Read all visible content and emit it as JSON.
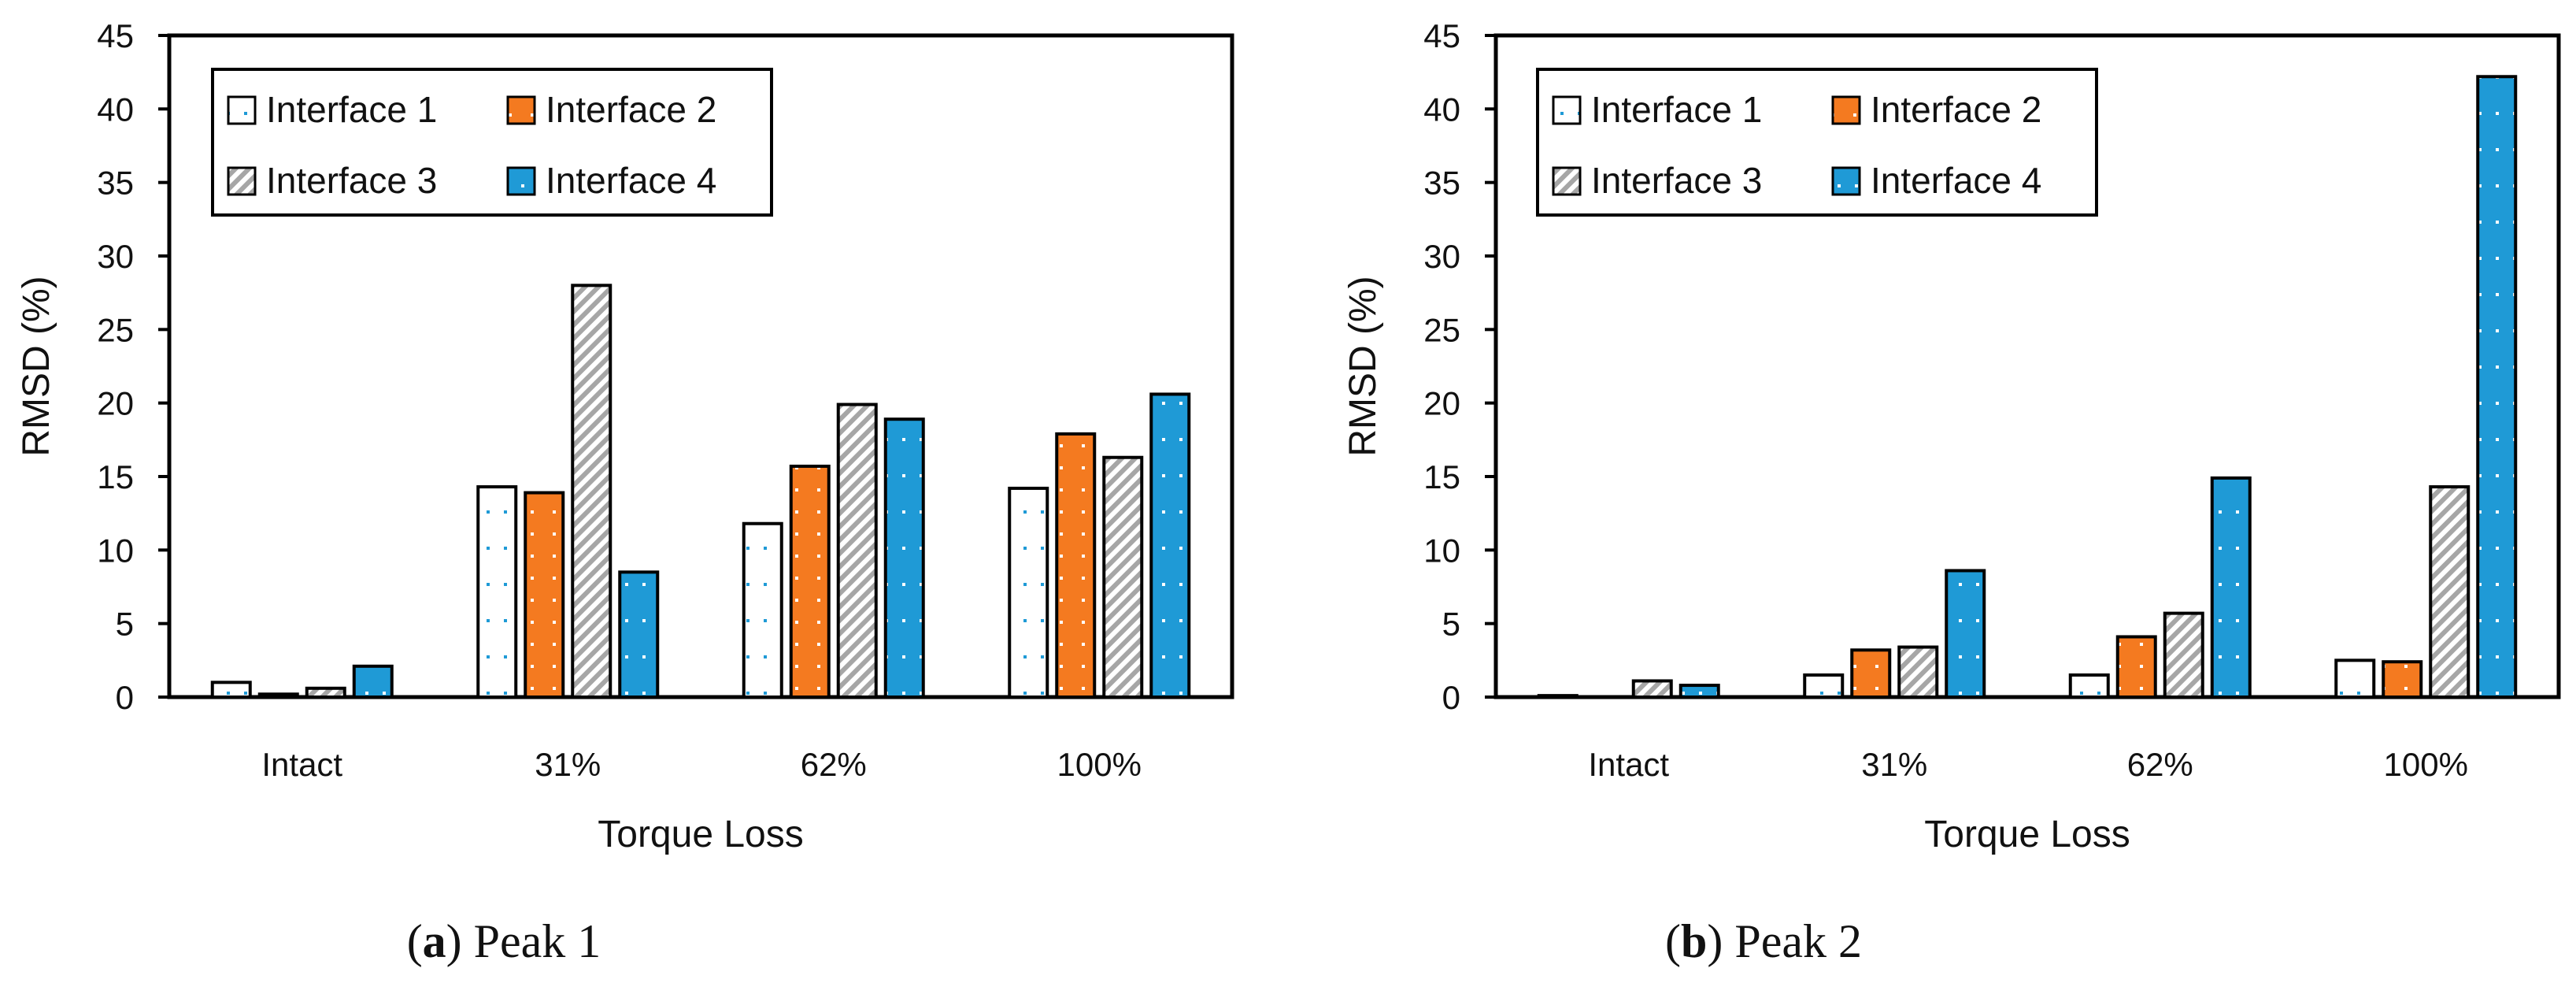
{
  "colors": {
    "interface1_fill": "#ffffff",
    "interface1_dots": "#1f9ad6",
    "interface2_fill": "#f47a20",
    "interface2_dots": "#ffffff",
    "interface3_fill": "#ffffff",
    "interface3_hatch": "#a6a6a6",
    "interface4_fill": "#1f9ad6",
    "interface4_dots": "#ffffff",
    "axis": "#000000"
  },
  "chart_data": [
    {
      "type": "bar",
      "caption_letter": "a",
      "caption_text": "Peak 1",
      "xlabel": "Torque Loss",
      "ylabel": "RMSD (%)",
      "ylim": [
        0,
        45
      ],
      "yticks": [
        0,
        5,
        10,
        15,
        20,
        25,
        30,
        35,
        40,
        45
      ],
      "grid": false,
      "legend_position": "top-left",
      "categories": [
        "Intact",
        "31%",
        "62%",
        "100%"
      ],
      "series": [
        {
          "name": "Interface 1",
          "values": [
            1.0,
            14.3,
            11.8,
            14.2
          ]
        },
        {
          "name": "Interface 2",
          "values": [
            0.2,
            13.9,
            15.7,
            17.9
          ]
        },
        {
          "name": "Interface 3",
          "values": [
            0.6,
            28.0,
            19.9,
            16.3
          ]
        },
        {
          "name": "Interface 4",
          "values": [
            2.1,
            8.5,
            18.9,
            20.6
          ]
        }
      ]
    },
    {
      "type": "bar",
      "caption_letter": "b",
      "caption_text": "Peak 2",
      "xlabel": "Torque Loss",
      "ylabel": "RMSD (%)",
      "ylim": [
        0,
        45
      ],
      "yticks": [
        0,
        5,
        10,
        15,
        20,
        25,
        30,
        35,
        40,
        45
      ],
      "grid": false,
      "legend_position": "top-left",
      "categories": [
        "Intact",
        "31%",
        "62%",
        "100%"
      ],
      "series": [
        {
          "name": "Interface 1",
          "values": [
            0.1,
            1.5,
            1.5,
            2.5
          ]
        },
        {
          "name": "Interface 2",
          "values": [
            0.0,
            3.2,
            4.1,
            2.4
          ]
        },
        {
          "name": "Interface 3",
          "values": [
            1.1,
            3.4,
            5.7,
            14.3
          ]
        },
        {
          "name": "Interface 4",
          "values": [
            0.8,
            8.6,
            14.9,
            42.2
          ]
        }
      ]
    }
  ]
}
